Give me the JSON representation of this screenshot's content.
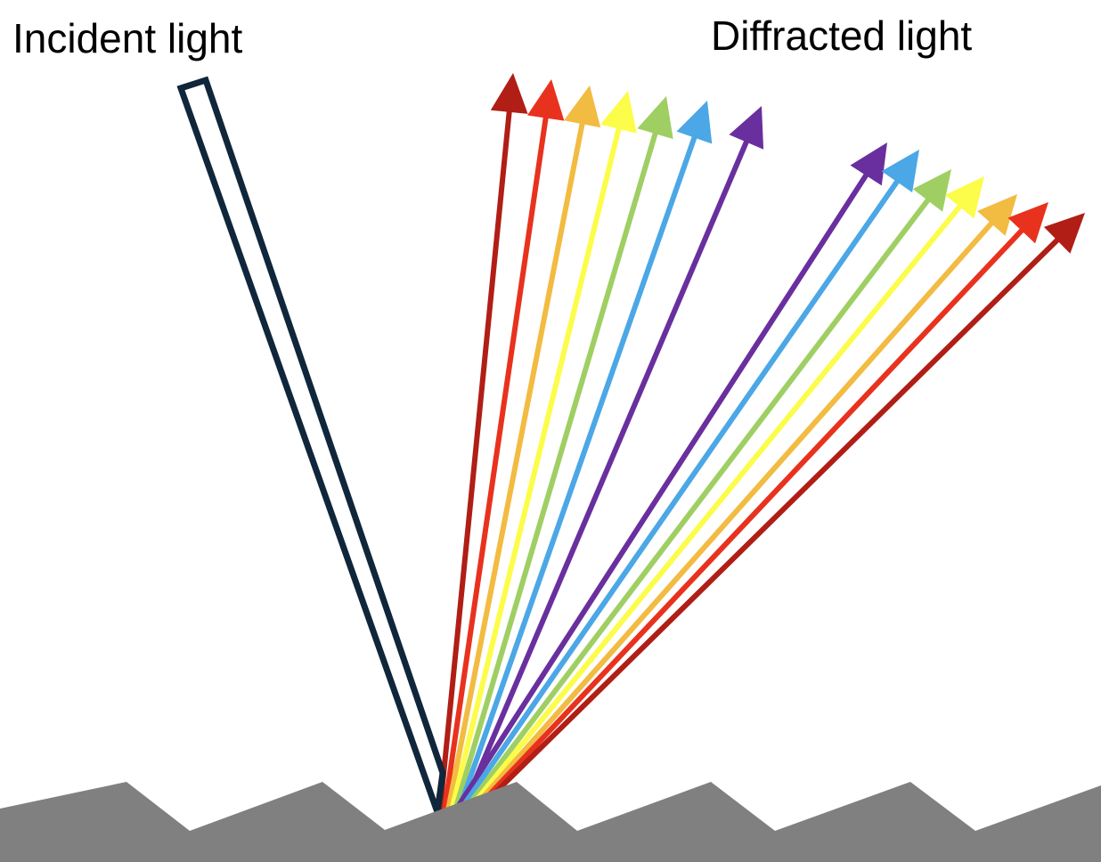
{
  "labels": {
    "incident": "Incident light",
    "diffracted": "Diffracted light"
  },
  "colors": {
    "grating": "#808080",
    "incident_beam_stroke": "#10263a",
    "background": "#ffffff"
  },
  "spectrum": [
    {
      "name": "dark-red",
      "color": "#b01e16"
    },
    {
      "name": "red",
      "color": "#e8321e"
    },
    {
      "name": "orange",
      "color": "#f2bb41"
    },
    {
      "name": "yellow",
      "color": "#fcfc4a"
    },
    {
      "name": "green",
      "color": "#9fcf63"
    },
    {
      "name": "blue",
      "color": "#4ba7e5"
    },
    {
      "name": "violet",
      "color": "#6a2f9e"
    }
  ],
  "diffraction_orders": [
    {
      "order": "first",
      "sequence": [
        "dark-red",
        "red",
        "orange",
        "yellow",
        "green",
        "blue",
        "violet"
      ]
    },
    {
      "order": "second",
      "sequence": [
        "violet",
        "blue",
        "green",
        "yellow",
        "orange",
        "red",
        "dark-red"
      ]
    }
  ]
}
